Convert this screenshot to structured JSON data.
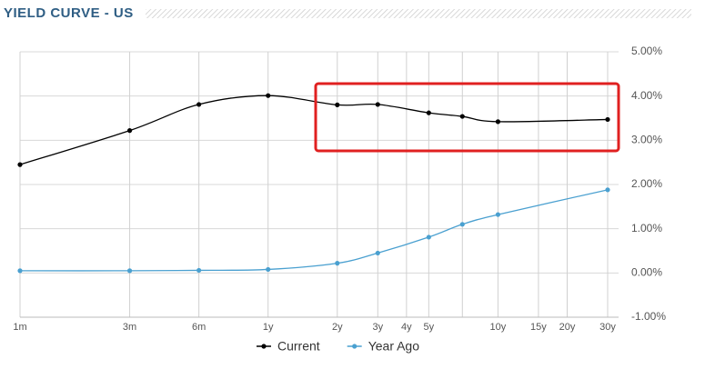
{
  "chart_data": {
    "type": "line",
    "title": "YIELD CURVE - US",
    "x": [
      1,
      3,
      6,
      12,
      24,
      36,
      60,
      84,
      120,
      360
    ],
    "log_x": true,
    "xlim": [
      1,
      360
    ],
    "xticks": [
      {
        "value": 1,
        "label": "1m"
      },
      {
        "value": 3,
        "label": "3m"
      },
      {
        "value": 6,
        "label": "6m"
      },
      {
        "value": 12,
        "label": "1y"
      },
      {
        "value": 24,
        "label": "2y"
      },
      {
        "value": 36,
        "label": "3y"
      },
      {
        "value": 48,
        "label": "4y"
      },
      {
        "value": 60,
        "label": "5y"
      },
      {
        "value": 84,
        "label": null
      },
      {
        "value": 120,
        "label": "10y"
      },
      {
        "value": 180,
        "label": "15y"
      },
      {
        "value": 240,
        "label": "20y"
      },
      {
        "value": 360,
        "label": "30y"
      }
    ],
    "ylim": [
      -1,
      5
    ],
    "yticks": [
      {
        "value": -1,
        "label": "-1.00%"
      },
      {
        "value": 0,
        "label": "0.00%"
      },
      {
        "value": 1,
        "label": "1.00%"
      },
      {
        "value": 2,
        "label": "2.00%"
      },
      {
        "value": 3,
        "label": "3.00%"
      },
      {
        "value": 4,
        "label": "4.00%"
      },
      {
        "value": 5,
        "label": "5.00%"
      }
    ],
    "grid": true,
    "legend": "bottom",
    "series": [
      {
        "name": "Current",
        "color": "#000000",
        "values": [
          2.45,
          3.22,
          3.81,
          4.01,
          3.8,
          3.81,
          3.62,
          3.54,
          3.42,
          3.47
        ]
      },
      {
        "name": "Year Ago",
        "color": "#4aa0d0",
        "values": [
          0.05,
          0.05,
          0.06,
          0.08,
          0.22,
          0.45,
          0.81,
          1.1,
          1.32,
          1.88
        ]
      }
    ]
  }
}
